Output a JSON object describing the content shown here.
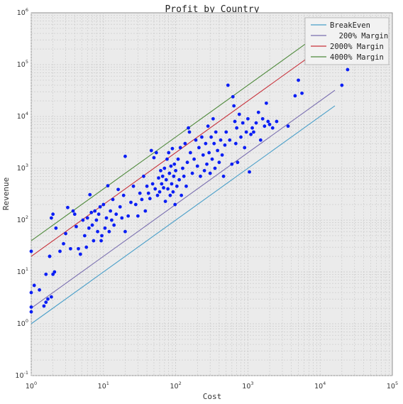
{
  "chart_data": {
    "type": "scatter",
    "title": "Profit by Country",
    "xlabel": "Cost",
    "ylabel": "Revenue",
    "xscale": "log",
    "yscale": "log",
    "xlim": [
      1,
      100000
    ],
    "ylim": [
      0.1,
      1000000
    ],
    "grid": true,
    "legend_position": "top-right",
    "x_ticks": [
      {
        "value": 1,
        "base": "10",
        "exp": "0"
      },
      {
        "value": 10,
        "base": "10",
        "exp": "1"
      },
      {
        "value": 100,
        "base": "10",
        "exp": "2"
      },
      {
        "value": 1000,
        "base": "10",
        "exp": "3"
      },
      {
        "value": 10000,
        "base": "10",
        "exp": "4"
      },
      {
        "value": 100000,
        "base": "10",
        "exp": "5"
      }
    ],
    "y_ticks": [
      {
        "value": 0.1,
        "base": "10",
        "exp": "-1"
      },
      {
        "value": 1,
        "base": "10",
        "exp": "0"
      },
      {
        "value": 10,
        "base": "10",
        "exp": "1"
      },
      {
        "value": 100,
        "base": "10",
        "exp": "2"
      },
      {
        "value": 1000,
        "base": "10",
        "exp": "3"
      },
      {
        "value": 10000,
        "base": "10",
        "exp": "4"
      },
      {
        "value": 100000,
        "base": "10",
        "exp": "5"
      },
      {
        "value": 1000000,
        "base": "10",
        "exp": "6"
      }
    ],
    "lines": [
      {
        "name": "BreakEven",
        "multiplier": 1,
        "x": [
          1,
          16000
        ],
        "color": "#4a9fc9"
      },
      {
        "name": "  200% Margin",
        "multiplier": 2,
        "x": [
          1,
          16000
        ],
        "color": "#7a6fb0"
      },
      {
        "name": "2000% Margin",
        "multiplier": 20,
        "x": [
          1,
          6400
        ],
        "color": "#c8323b"
      },
      {
        "name": "4000% Margin",
        "multiplier": 40,
        "x": [
          1,
          6300
        ],
        "color": "#4f8a3c"
      }
    ],
    "series": [
      {
        "type": "scatter",
        "color": "#0a1ef5",
        "points": [
          [
            1,
            1.7
          ],
          [
            1,
            2.1
          ],
          [
            1,
            4
          ],
          [
            1.1,
            5.5
          ],
          [
            1,
            25
          ],
          [
            1.3,
            4.5
          ],
          [
            1.5,
            2.2
          ],
          [
            1.6,
            2.6
          ],
          [
            1.7,
            3
          ],
          [
            1.9,
            3.3
          ],
          [
            1.6,
            9
          ],
          [
            1.8,
            20
          ],
          [
            2.1,
            10
          ],
          [
            2,
            9
          ],
          [
            1.8,
            20
          ],
          [
            1.9,
            110
          ],
          [
            2,
            130
          ],
          [
            2.2,
            70
          ],
          [
            2.5,
            25
          ],
          [
            2.8,
            35
          ],
          [
            3,
            55
          ],
          [
            3.2,
            175
          ],
          [
            3.5,
            28
          ],
          [
            3.8,
            150
          ],
          [
            4,
            130
          ],
          [
            4.2,
            75
          ],
          [
            4.5,
            28
          ],
          [
            4.8,
            22
          ],
          [
            5.2,
            100
          ],
          [
            5.5,
            50
          ],
          [
            5.8,
            30
          ],
          [
            6,
            110
          ],
          [
            6.3,
            70
          ],
          [
            6.5,
            310
          ],
          [
            6.8,
            140
          ],
          [
            7,
            80
          ],
          [
            7.3,
            40
          ],
          [
            7.6,
            150
          ],
          [
            8,
            100
          ],
          [
            8.3,
            60
          ],
          [
            8.6,
            130
          ],
          [
            9,
            180
          ],
          [
            9.3,
            40
          ],
          [
            9.5,
            50
          ],
          [
            10,
            200
          ],
          [
            10.5,
            70
          ],
          [
            11,
            110
          ],
          [
            11.5,
            460
          ],
          [
            12,
            60
          ],
          [
            12.5,
            150
          ],
          [
            13,
            100
          ],
          [
            13.5,
            250
          ],
          [
            14,
            80
          ],
          [
            15,
            130
          ],
          [
            16,
            390
          ],
          [
            17,
            180
          ],
          [
            18,
            110
          ],
          [
            19,
            300
          ],
          [
            20,
            60
          ],
          [
            20,
            1700
          ],
          [
            22,
            120
          ],
          [
            24,
            220
          ],
          [
            26,
            450
          ],
          [
            28,
            200
          ],
          [
            30,
            120
          ],
          [
            32,
            330
          ],
          [
            34,
            250
          ],
          [
            36,
            700
          ],
          [
            38,
            150
          ],
          [
            40,
            450
          ],
          [
            42,
            330
          ],
          [
            44,
            260
          ],
          [
            46,
            2200
          ],
          [
            48,
            500
          ],
          [
            50,
            1600
          ],
          [
            52,
            400
          ],
          [
            54,
            2000
          ],
          [
            56,
            300
          ],
          [
            58,
            650
          ],
          [
            60,
            350
          ],
          [
            62,
            900
          ],
          [
            64,
            500
          ],
          [
            66,
            700
          ],
          [
            68,
            420
          ],
          [
            70,
            1000
          ],
          [
            72,
            230
          ],
          [
            74,
            600
          ],
          [
            76,
            1500
          ],
          [
            78,
            400
          ],
          [
            80,
            2000
          ],
          [
            82,
            800
          ],
          [
            84,
            300
          ],
          [
            86,
            1100
          ],
          [
            88,
            500
          ],
          [
            90,
            2400
          ],
          [
            92,
            350
          ],
          [
            94,
            700
          ],
          [
            96,
            1200
          ],
          [
            98,
            200
          ],
          [
            100,
            900
          ],
          [
            104,
            450
          ],
          [
            108,
            1500
          ],
          [
            112,
            600
          ],
          [
            116,
            2500
          ],
          [
            120,
            300
          ],
          [
            125,
            1000
          ],
          [
            130,
            700
          ],
          [
            135,
            3000
          ],
          [
            140,
            450
          ],
          [
            145,
            1300
          ],
          [
            150,
            6000
          ],
          [
            155,
            5000
          ],
          [
            160,
            2000
          ],
          [
            170,
            800
          ],
          [
            180,
            1500
          ],
          [
            190,
            3500
          ],
          [
            200,
            1100
          ],
          [
            210,
            2500
          ],
          [
            220,
            700
          ],
          [
            230,
            4000
          ],
          [
            240,
            1800
          ],
          [
            250,
            900
          ],
          [
            260,
            3000
          ],
          [
            270,
            1200
          ],
          [
            280,
            6500
          ],
          [
            290,
            2000
          ],
          [
            300,
            800
          ],
          [
            310,
            4000
          ],
          [
            320,
            1500
          ],
          [
            330,
            9000
          ],
          [
            340,
            3000
          ],
          [
            350,
            1000
          ],
          [
            360,
            5000
          ],
          [
            380,
            2200
          ],
          [
            400,
            1300
          ],
          [
            420,
            3500
          ],
          [
            440,
            1800
          ],
          [
            460,
            700
          ],
          [
            480,
            2800
          ],
          [
            500,
            5000
          ],
          [
            530,
            40000
          ],
          [
            560,
            3500
          ],
          [
            600,
            1200
          ],
          [
            620,
            24000
          ],
          [
            640,
            16000
          ],
          [
            660,
            8000
          ],
          [
            680,
            3000
          ],
          [
            700,
            6000
          ],
          [
            720,
            1300
          ],
          [
            760,
            11000
          ],
          [
            800,
            4000
          ],
          [
            850,
            7500
          ],
          [
            900,
            2500
          ],
          [
            950,
            5000
          ],
          [
            1000,
            9000
          ],
          [
            1050,
            850
          ],
          [
            1100,
            4500
          ],
          [
            1150,
            6000
          ],
          [
            1200,
            5000
          ],
          [
            1300,
            7500
          ],
          [
            1400,
            12000
          ],
          [
            1500,
            3500
          ],
          [
            1600,
            9000
          ],
          [
            1700,
            6500
          ],
          [
            1800,
            18000
          ],
          [
            1900,
            8000
          ],
          [
            2000,
            7000
          ],
          [
            2200,
            6000
          ],
          [
            2500,
            8000
          ],
          [
            3600,
            6500
          ],
          [
            4500,
            25000
          ],
          [
            5000,
            50000
          ],
          [
            5600,
            28000
          ],
          [
            20000,
            40000
          ],
          [
            24000,
            80000
          ]
        ]
      }
    ]
  },
  "colors": {
    "background": "#ebebeb",
    "grid": "#c7c7c7",
    "points": "#0a1ef5"
  }
}
